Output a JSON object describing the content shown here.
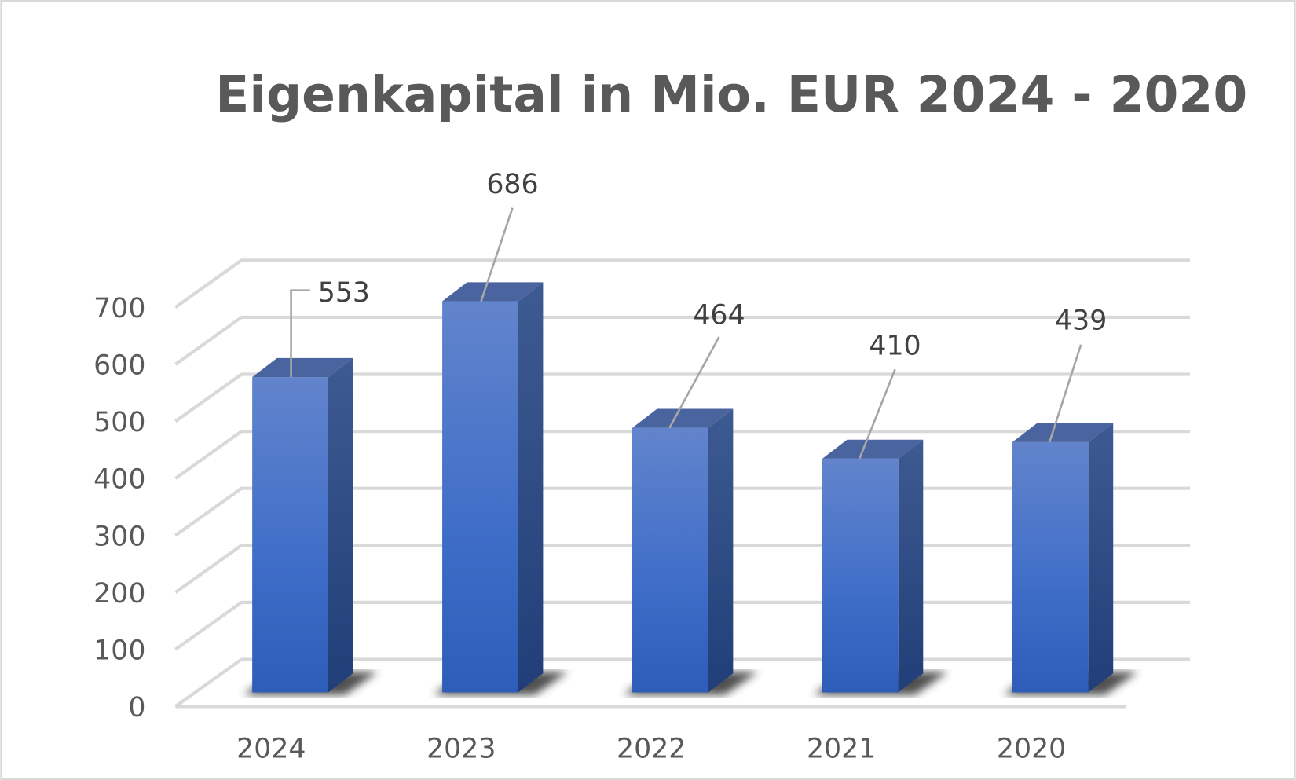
{
  "chart_data": {
    "type": "bar",
    "style": "3d-column",
    "title": "Eigenkapital in Mio. EUR  2024 - 2020",
    "xlabel": "",
    "ylabel": "",
    "categories": [
      "2024",
      "2023",
      "2022",
      "2021",
      "2020"
    ],
    "values": [
      553,
      686,
      464,
      410,
      439
    ],
    "data_labels": [
      "553",
      "686",
      "464",
      "410",
      "439"
    ],
    "ylim": [
      0,
      700
    ],
    "yticks": [
      0,
      100,
      200,
      300,
      400,
      500,
      600,
      700
    ],
    "ytick_labels": [
      "0",
      "100",
      "200",
      "300",
      "400",
      "500",
      "600",
      "700"
    ],
    "grid": true,
    "legend": "none",
    "colors": {
      "bar": "#4472C4",
      "bar_side": "#2F4F8F",
      "bar_top": "#4A64A0",
      "grid": "#D9D9D9",
      "text": "#595959"
    }
  }
}
